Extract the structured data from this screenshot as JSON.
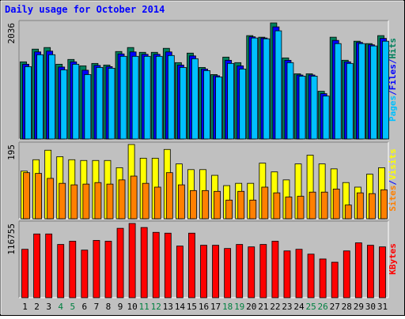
{
  "title": "Daily usage for October 2014",
  "chart_data": [
    {
      "type": "bar",
      "ylim": [
        0,
        2036
      ],
      "yticks": [
        2036
      ],
      "legend_separator": "/",
      "series": [
        {
          "name": "Hits",
          "color": "#00805c",
          "values": [
            1353,
            1576,
            1604,
            1311,
            1395,
            1283,
            1325,
            1297,
            1534,
            1604,
            1520,
            1520,
            1590,
            1339,
            1506,
            1255,
            1130,
            1436,
            1339,
            1813,
            1785,
            2036,
            1422,
            1143,
            1143,
            837,
            1785,
            1381,
            1715,
            1673,
            1813
          ]
        },
        {
          "name": "Files",
          "color": "#0000ff",
          "values": [
            1311,
            1527,
            1541,
            1262,
            1353,
            1206,
            1290,
            1269,
            1492,
            1527,
            1485,
            1485,
            1527,
            1297,
            1457,
            1227,
            1109,
            1380,
            1283,
            1792,
            1771,
            1966,
            1380,
            1122,
            1122,
            795,
            1729,
            1353,
            1694,
            1652,
            1764
          ]
        },
        {
          "name": "Pages",
          "color": "#00c0ff",
          "values": [
            1269,
            1478,
            1478,
            1213,
            1311,
            1130,
            1255,
            1241,
            1450,
            1450,
            1450,
            1450,
            1464,
            1255,
            1408,
            1199,
            1088,
            1325,
            1227,
            1771,
            1757,
            1897,
            1339,
            1102,
            1102,
            753,
            1673,
            1325,
            1673,
            1632,
            1715
          ]
        }
      ]
    },
    {
      "type": "bar",
      "ylim": [
        0,
        195
      ],
      "yticks": [
        195
      ],
      "legend_separator": "/",
      "series": [
        {
          "name": "Visits",
          "color": "#ffff00",
          "values": [
            125,
            155,
            180,
            163,
            155,
            153,
            153,
            153,
            134,
            195,
            159,
            159,
            182,
            144,
            129,
            129,
            114,
            87,
            93,
            93,
            146,
            123,
            102,
            144,
            167,
            144,
            131,
            95,
            83,
            117,
            134
          ]
        },
        {
          "name": "Sites",
          "color": "#ff8000",
          "values": [
            121,
            119,
            106,
            93,
            89,
            91,
            95,
            91,
            102,
            112,
            93,
            83,
            121,
            89,
            74,
            74,
            72,
            49,
            72,
            49,
            83,
            68,
            57,
            59,
            70,
            70,
            78,
            36,
            68,
            66,
            76
          ]
        }
      ]
    },
    {
      "type": "bar",
      "ylim": [
        0,
        116755
      ],
      "yticks": [
        116755
      ],
      "categories": [
        "1",
        "2",
        "3",
        "4",
        "5",
        "6",
        "7",
        "8",
        "9",
        "10",
        "11",
        "12",
        "13",
        "14",
        "15",
        "16",
        "17",
        "18",
        "19",
        "20",
        "21",
        "22",
        "23",
        "24",
        "25",
        "26",
        "27",
        "28",
        "29",
        "30",
        "31"
      ],
      "highlight_categories": [
        "4",
        "5",
        "11",
        "12",
        "18",
        "19",
        "25",
        "26"
      ],
      "highlight_color": "#008040",
      "series": [
        {
          "name": "KBytes",
          "color": "#ff0000",
          "values": [
            76140,
            100251,
            100251,
            83754,
            88830,
            74871,
            90099,
            88830,
            109134,
            116755,
            110403,
            102789,
            101520,
            81216,
            101520,
            82485,
            82485,
            77409,
            83754,
            79947,
            83754,
            88830,
            73602,
            76140,
            68526,
            60912,
            55836,
            73602,
            86292,
            82485,
            79947
          ]
        }
      ]
    }
  ]
}
